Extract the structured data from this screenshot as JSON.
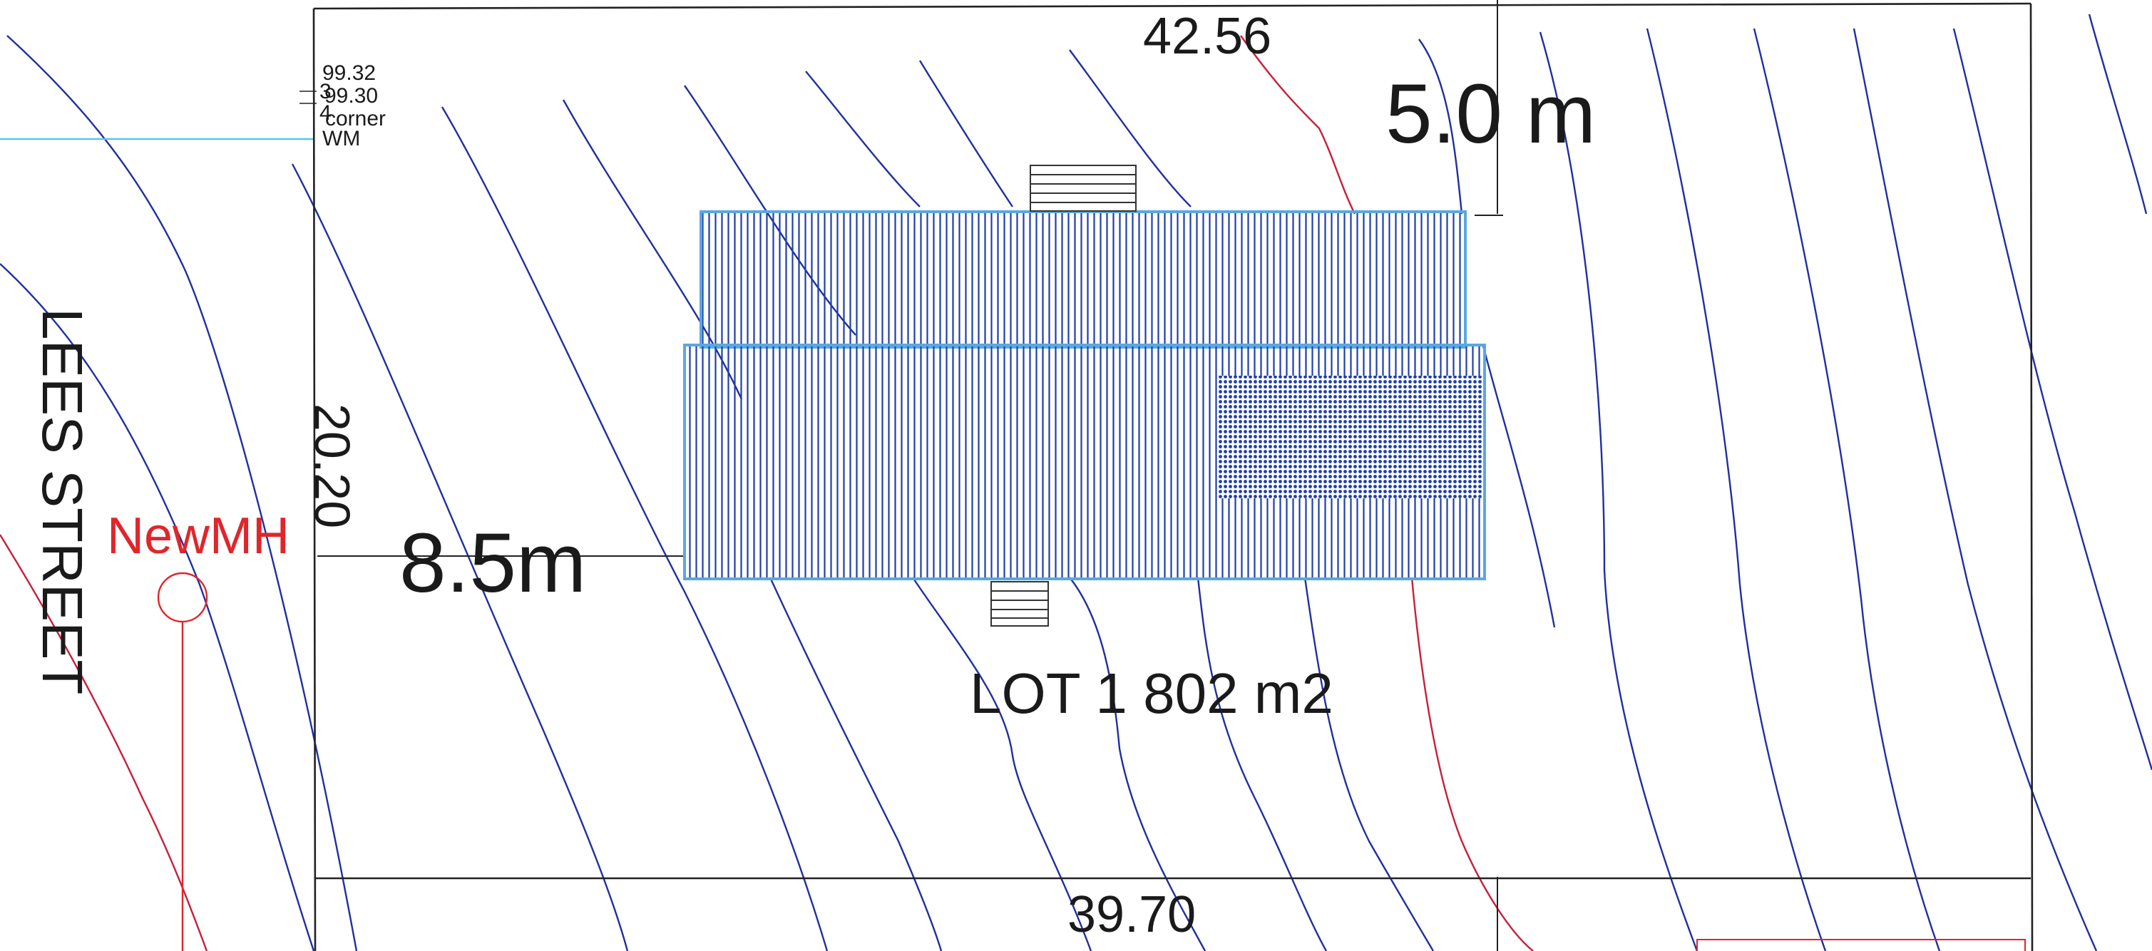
{
  "street": {
    "name": "LEES STREET"
  },
  "lot": {
    "label": "LOT 1 802 m2",
    "boundary_top": "42.56",
    "boundary_bottom": "39.70",
    "boundary_left": "20.20"
  },
  "setbacks": {
    "front": "8.5m",
    "top": "5.0 m"
  },
  "survey_marks": {
    "level_1": "99.32",
    "level_2": "99.30",
    "note": "corner",
    "note2": "WM",
    "fragment": "3",
    "fragment2": "4"
  },
  "manhole": {
    "label": "NewMH"
  },
  "colors": {
    "contour": "#1f2fa0",
    "contour_index": "#c81e3a",
    "building": "#1f3fa8",
    "building_edge": "#5aa8e0",
    "annotation_red": "#e0262b",
    "boundary": "#222222"
  }
}
